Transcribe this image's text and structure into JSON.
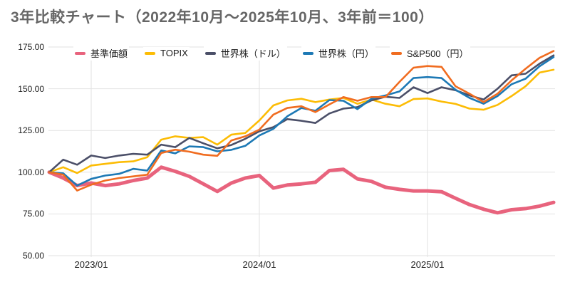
{
  "title": "3年比較チャート（2022年10月～2025年10月、3年前＝100）",
  "chart_data": {
    "type": "line",
    "title": "3年比較チャート（2022年10月～2025年10月、3年前＝100）",
    "xlabel": "",
    "ylabel": "",
    "ylim": [
      50,
      175
    ],
    "grid": true,
    "legend_position": "top",
    "y_tick_values": [
      175,
      150,
      125,
      100,
      75,
      50
    ],
    "y_tick_labels": [
      "175.00",
      "150.00",
      "125.00",
      "100.00",
      "75.00",
      "50.00"
    ],
    "x_tick_labels": [
      "2023/01",
      "2024/01",
      "2025/01"
    ],
    "x_tick_indices": [
      3,
      15,
      27
    ],
    "categories": [
      "2022/10",
      "2022/11",
      "2022/12",
      "2023/01",
      "2023/02",
      "2023/03",
      "2023/04",
      "2023/05",
      "2023/06",
      "2023/07",
      "2023/08",
      "2023/09",
      "2023/10",
      "2023/11",
      "2023/12",
      "2024/01",
      "2024/02",
      "2024/03",
      "2024/04",
      "2024/05",
      "2024/06",
      "2024/07",
      "2024/08",
      "2024/09",
      "2024/10",
      "2024/11",
      "2024/12",
      "2025/01",
      "2025/02",
      "2025/03",
      "2025/04",
      "2025/05",
      "2025/06",
      "2025/07",
      "2025/08",
      "2025/09",
      "2025/10"
    ],
    "series": [
      {
        "name": "基準価額",
        "color": "#e8637d",
        "line_width": 5,
        "values": [
          100,
          96.5,
          92,
          93.5,
          92,
          93,
          95,
          96.5,
          103,
          100.5,
          97.5,
          93,
          88.5,
          93.5,
          96.5,
          98,
          90.5,
          92.3,
          93,
          94,
          101,
          101.7,
          96,
          94.5,
          91,
          89.7,
          88.8,
          88.8,
          88.3,
          84.4,
          80.6,
          77.8,
          75.7,
          77.5,
          78.2,
          79.7,
          81.9
        ]
      },
      {
        "name": "TOPIX",
        "color": "#fcbc05",
        "line_width": 2.6,
        "values": [
          100,
          103,
          99.5,
          104,
          105,
          106,
          106.5,
          109,
          119.5,
          121.5,
          120.5,
          121,
          116.5,
          122.5,
          123.5,
          131,
          140,
          143,
          144,
          142,
          143.5,
          144.5,
          141,
          143.5,
          141,
          139.5,
          143.8,
          144.2,
          142.3,
          140.9,
          138.1,
          137.4,
          140.3,
          145.6,
          151.5,
          159.7,
          161.4
        ]
      },
      {
        "name": "世界株（ドル）",
        "color": "#4b4f68",
        "line_width": 2.6,
        "values": [
          100,
          107.5,
          104.5,
          110,
          108.5,
          110,
          111,
          110.5,
          116.5,
          115,
          120.5,
          117.3,
          114.3,
          116.3,
          120,
          124.5,
          127,
          131.8,
          130.8,
          129.5,
          135.2,
          138.1,
          139,
          143,
          145.2,
          144.5,
          150.9,
          147.4,
          150.9,
          149.1,
          146,
          143.5,
          150,
          158,
          159,
          165,
          170
        ]
      },
      {
        "name": "世界株（円）",
        "color": "#1d79b5",
        "line_width": 2.6,
        "values": [
          100,
          99.3,
          92,
          96,
          98,
          99,
          102,
          101,
          113,
          111.3,
          115.5,
          115,
          112.5,
          113.4,
          115.8,
          122,
          126,
          133.5,
          138.5,
          136.8,
          143.2,
          142.8,
          137.8,
          144,
          146,
          148.4,
          156.4,
          157,
          156.4,
          149.4,
          144.5,
          141,
          145.6,
          152.7,
          156,
          163.5,
          169
        ]
      },
      {
        "name": "S&P500（円）",
        "color": "#f06c20",
        "line_width": 2.6,
        "values": [
          100,
          98.5,
          89,
          92.5,
          95,
          96.5,
          97.5,
          98.5,
          111.5,
          113.5,
          112.3,
          110.5,
          109.8,
          119,
          121.5,
          125.5,
          134.5,
          138.5,
          139.5,
          136,
          140.6,
          145,
          142.8,
          145,
          145,
          154.1,
          162.6,
          163.6,
          163.1,
          151.5,
          147,
          142,
          147,
          155,
          162,
          168.5,
          172.6
        ]
      }
    ],
    "colors": {
      "grid": "#e2e2e2",
      "axis_text": "#1f1f1f",
      "title_text": "#666666",
      "background": "#ffffff"
    }
  }
}
